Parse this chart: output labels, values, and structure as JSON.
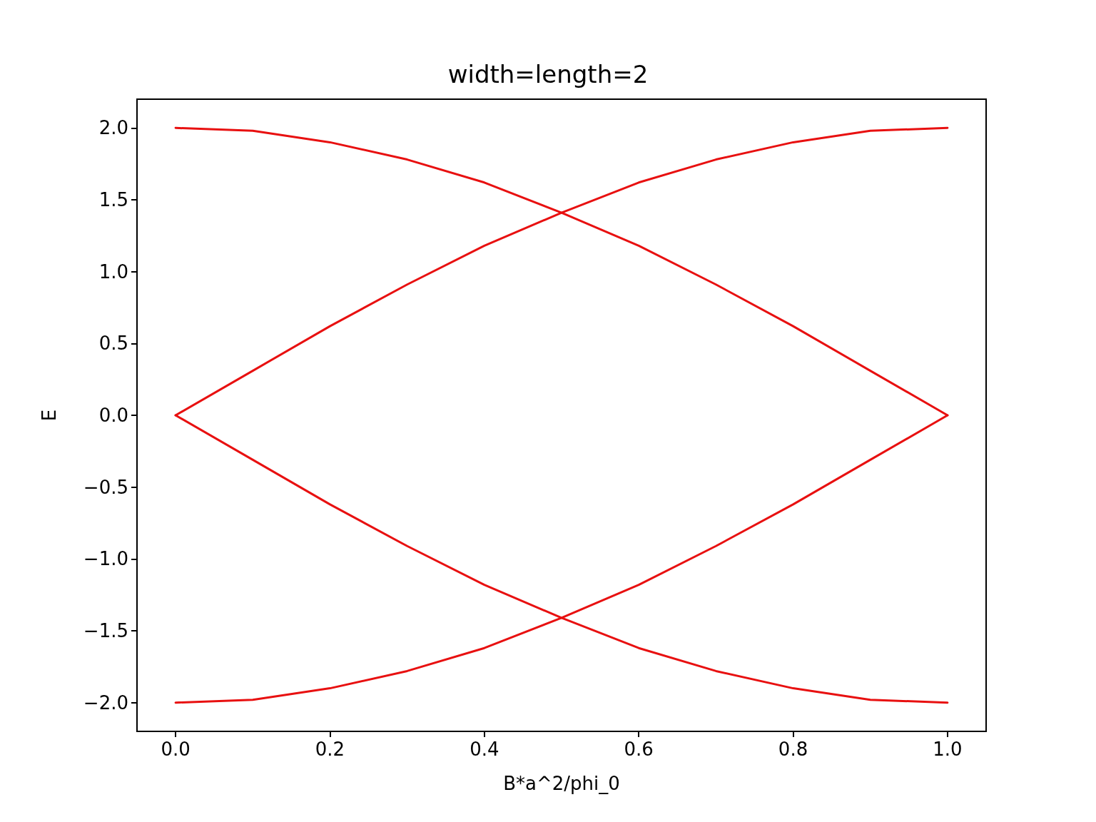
{
  "chart_data": {
    "type": "line",
    "title": "width=length=2",
    "xlabel": "B*a^2/phi_0",
    "ylabel": "E",
    "x": [
      0,
      0.1,
      0.2,
      0.3,
      0.4,
      0.5,
      0.6,
      0.7,
      0.8,
      0.9,
      1.0
    ],
    "series": [
      {
        "color": "#e81010",
        "values": [
          2.0,
          1.98,
          1.9,
          1.78,
          1.62,
          1.41,
          1.18,
          0.91,
          0.62,
          0.31,
          0.0
        ]
      },
      {
        "color": "#e81010",
        "values": [
          -2.0,
          -1.98,
          -1.9,
          -1.78,
          -1.62,
          -1.41,
          -1.18,
          -0.91,
          -0.62,
          -0.31,
          0.0
        ]
      },
      {
        "color": "#e81010",
        "values": [
          0.0,
          0.31,
          0.62,
          0.91,
          1.18,
          1.41,
          1.62,
          1.78,
          1.9,
          1.98,
          2.0
        ]
      },
      {
        "color": "#e81010",
        "values": [
          0.0,
          -0.31,
          -0.62,
          -0.91,
          -1.18,
          -1.41,
          -1.62,
          -1.78,
          -1.9,
          -1.98,
          -2.0
        ]
      }
    ],
    "xlim": [
      -0.05,
      1.05
    ],
    "ylim": [
      -2.2,
      2.2
    ],
    "xticks": [
      {
        "value": 0,
        "label": "0.0"
      },
      0.2,
      0.4,
      0.6,
      0.8,
      {
        "value": 1,
        "label": "1.0"
      }
    ],
    "yticks": [
      {
        "value": -2,
        "label": "−2.0"
      },
      {
        "value": -1.5,
        "label": "−1.5"
      },
      {
        "value": -1,
        "label": "−1.0"
      },
      {
        "value": -0.5,
        "label": "−0.5"
      },
      {
        "value": 0,
        "label": "0.0"
      },
      0.5,
      {
        "value": 1,
        "label": "1.0"
      },
      1.5,
      {
        "value": 2,
        "label": "2.0"
      }
    ],
    "marker": "none",
    "line_style": "solid"
  }
}
